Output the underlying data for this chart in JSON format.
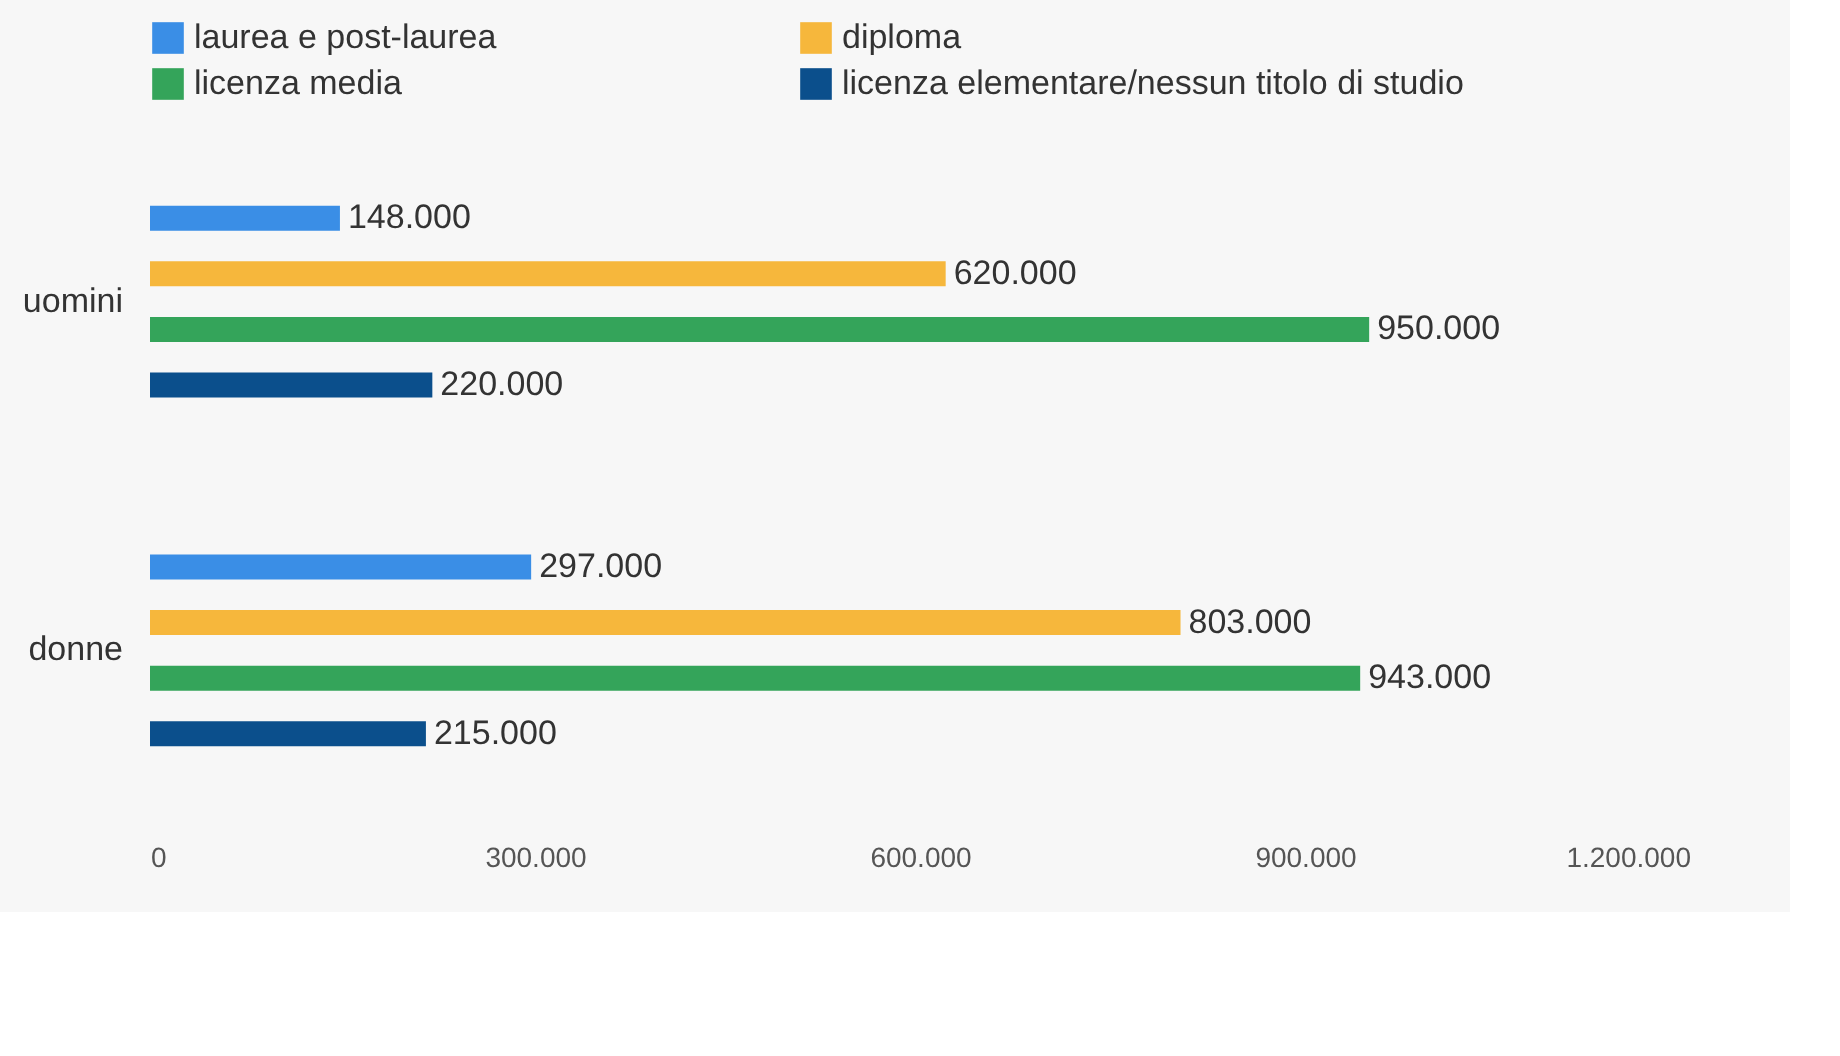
{
  "chart_data": {
    "type": "bar",
    "orientation": "horizontal",
    "categories": [
      "uomini",
      "donne"
    ],
    "series": [
      {
        "name": "laurea e post-laurea",
        "color": "#3a8ee6",
        "values": [
          148000,
          297000
        ],
        "value_labels": [
          "148.000",
          "297.000"
        ]
      },
      {
        "name": "diploma",
        "color": "#f6b73c",
        "values": [
          620000,
          803000
        ],
        "value_labels": [
          "620.000",
          "803.000"
        ]
      },
      {
        "name": "licenza media",
        "color": "#34a45a",
        "values": [
          950000,
          943000
        ],
        "value_labels": [
          "950.000",
          "943.000"
        ]
      },
      {
        "name": "licenza elementare/nessun titolo di studio",
        "color": "#0b4f8c",
        "values": [
          220000,
          215000
        ],
        "value_labels": [
          "220.000",
          "215.000"
        ]
      }
    ],
    "xlim": [
      0,
      1200000
    ],
    "xticks": [
      0,
      {
        "value": 300000,
        "label": "300.000"
      },
      {
        "value": 600000,
        "label": "600.000"
      },
      {
        "value": 900000,
        "label": "900.000"
      },
      {
        "value": 1200000,
        "label": "1.200.000"
      }
    ],
    "grid": false,
    "legend": "top"
  }
}
